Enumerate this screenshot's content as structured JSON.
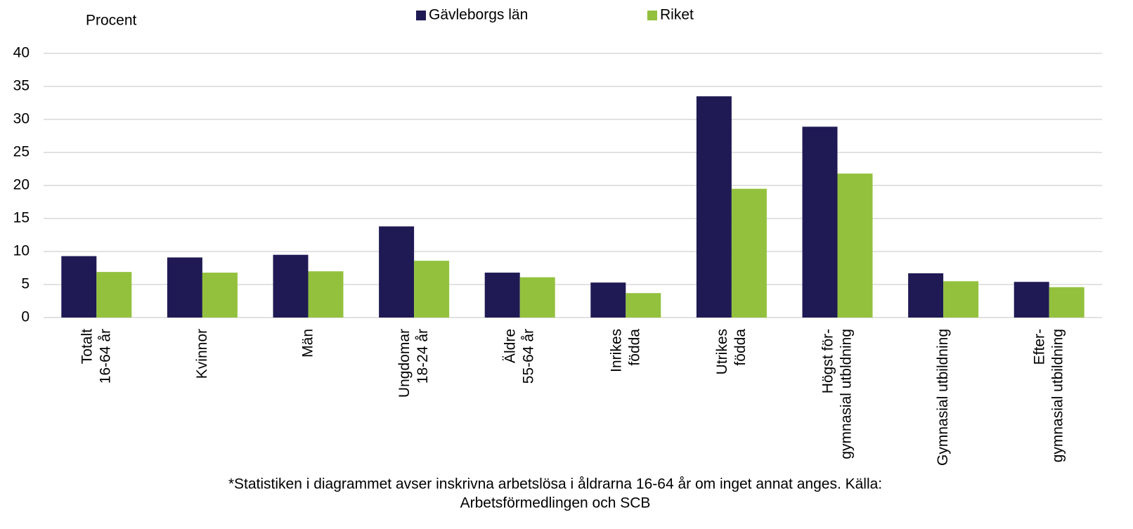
{
  "chart_data": {
    "type": "bar",
    "ylabel": "Procent",
    "categories": [
      "Totalt\n16-64 år",
      "Kvinnor",
      "Män",
      "Ungdomar\n18-24 år",
      "Äldre\n55-64 år",
      "Inrikes\nfödda",
      "Utrikes\nfödda",
      "Högst för-\ngymnasial utbldning",
      "Gymnasial utbildning",
      "Efter-\ngymnasial utbildning"
    ],
    "series": [
      {
        "name": "Gävleborgs län",
        "color": "#1f1a54",
        "values": [
          9.3,
          9.1,
          9.5,
          13.8,
          6.8,
          5.3,
          33.5,
          28.9,
          6.7,
          5.4
        ]
      },
      {
        "name": "Riket",
        "color": "#93c13e",
        "values": [
          6.9,
          6.8,
          7.0,
          8.6,
          6.1,
          3.7,
          19.5,
          21.8,
          5.5,
          4.6
        ]
      }
    ],
    "ylim": [
      0,
      40
    ],
    "yticks": [
      0,
      5,
      10,
      15,
      20,
      25,
      30,
      35,
      40
    ],
    "grid": true,
    "notes": [
      "*Statistiken i diagrammet avser inskrivna arbetslösa i åldrarna 16-64 år om inget annat anges. Källa:",
      "Arbetsförmedlingen och SCB"
    ]
  }
}
